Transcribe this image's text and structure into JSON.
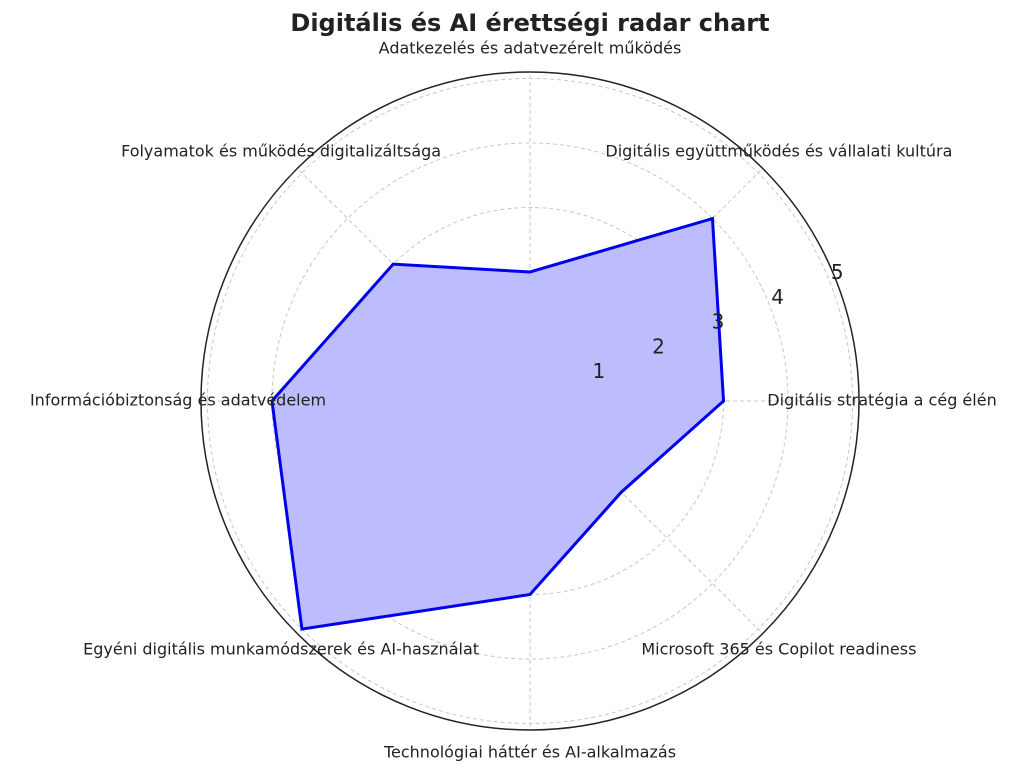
{
  "chart_data": {
    "type": "radar",
    "title": "Digitális és AI érettségi radar chart",
    "categories": [
      "Digitális stratégia a cég élén",
      "Digitális együttműködés és vállalati kultúra",
      "Adatkezelés és adatvezérelt működés",
      "Folyamatok és működés digitalizáltsága",
      "Információbiztonság és adatvédelem",
      "Egyéni digitális munkamódszerek és AI-használat",
      "Technológiai háttér és AI-alkalmazás",
      "Microsoft 365 és Copilot readiness"
    ],
    "values": [
      3,
      4,
      2,
      3,
      4,
      5,
      3,
      2
    ],
    "color": "#0000ee",
    "fill": "#bdbdfd",
    "ylim": [
      0,
      5.1
    ],
    "yticks": [
      1,
      2,
      3,
      4,
      5
    ],
    "grid": true
  }
}
